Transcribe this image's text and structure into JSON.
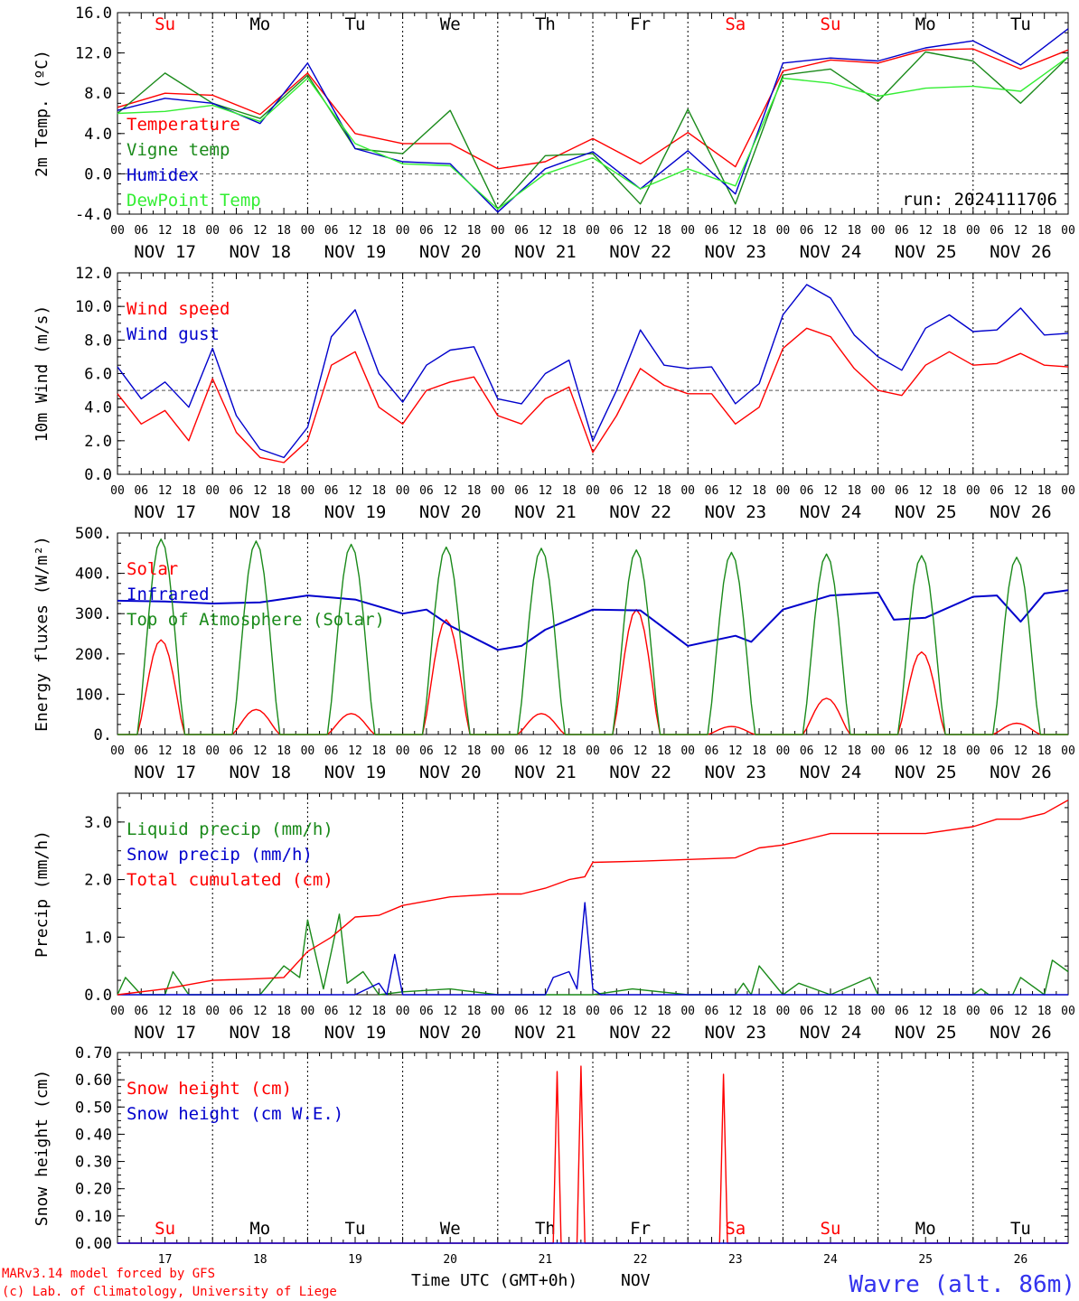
{
  "days": [
    "NOV 17",
    "NOV 18",
    "NOV 19",
    "NOV 20",
    "NOV 21",
    "NOV 22",
    "NOV 23",
    "NOV 24",
    "NOV 25",
    "NOV 26"
  ],
  "weekdays": [
    {
      "label": "Su",
      "color": "#ff0000"
    },
    {
      "label": "Mo",
      "color": "#000000"
    },
    {
      "label": "Tu",
      "color": "#000000"
    },
    {
      "label": "We",
      "color": "#000000"
    },
    {
      "label": "Th",
      "color": "#000000"
    },
    {
      "label": "Fr",
      "color": "#000000"
    },
    {
      "label": "Sa",
      "color": "#ff0000"
    },
    {
      "label": "Su",
      "color": "#ff0000"
    },
    {
      "label": "Mo",
      "color": "#000000"
    },
    {
      "label": "Tu",
      "color": "#000000"
    }
  ],
  "day_numbers": [
    "17",
    "18",
    "19",
    "20",
    "21",
    "22",
    "23",
    "24",
    "25",
    "26"
  ],
  "hour_ticks": [
    "00",
    "06",
    "12",
    "18"
  ],
  "footer": {
    "credit1": "MARv3.14 model forced by GFS",
    "credit2": "(c) Lab. of Climatology, University of Liege",
    "xlabel": "Time UTC (GMT+0h)",
    "month": "NOV",
    "station": "Wavre (alt. 86m)"
  },
  "chart_data": [
    {
      "type": "line",
      "ylabel": "2m Temp. (ºC)",
      "ylim": [
        -4,
        16
      ],
      "yticks": [
        "-4.0",
        "0.0",
        "4.0",
        "8.0",
        "12.0",
        "16.0"
      ],
      "ref_line": 0,
      "annotation": "run: 2024111706",
      "legend_placement": "left",
      "series": [
        {
          "name": "Temperature",
          "color": "#ff0000",
          "x": [
            0,
            12,
            24,
            36,
            48,
            60,
            72,
            84,
            96,
            108,
            120,
            132,
            144,
            156,
            168,
            180,
            192,
            204,
            216,
            228,
            240
          ],
          "values": [
            6.6,
            8.0,
            7.8,
            5.9,
            10.0,
            4.0,
            3.0,
            3.0,
            0.5,
            1.2,
            3.5,
            1.0,
            4.1,
            0.7,
            10.2,
            11.3,
            11.0,
            12.3,
            12.4,
            10.4,
            12.3
          ]
        },
        {
          "name": "Vigne temp",
          "color": "#1a8a1a",
          "x": [
            0,
            12,
            24,
            36,
            48,
            60,
            72,
            84,
            96,
            108,
            120,
            132,
            144,
            156,
            168,
            180,
            192,
            204,
            216,
            228,
            240
          ],
          "values": [
            6.0,
            10.0,
            7.0,
            5.5,
            9.8,
            2.5,
            2.0,
            6.3,
            -3.5,
            1.8,
            2.0,
            -3.0,
            6.4,
            -3.0,
            9.8,
            10.4,
            7.2,
            12.1,
            11.2,
            7.0,
            11.6
          ]
        },
        {
          "name": "Humidex",
          "color": "#0000cc",
          "x": [
            0,
            12,
            24,
            36,
            48,
            60,
            72,
            84,
            96,
            108,
            120,
            132,
            144,
            156,
            168,
            180,
            192,
            204,
            216,
            228,
            240
          ],
          "values": [
            6.3,
            7.5,
            7.0,
            5.0,
            11.0,
            2.5,
            1.2,
            1.0,
            -3.8,
            0.5,
            2.2,
            -1.5,
            2.3,
            -2.0,
            11.0,
            11.5,
            11.2,
            12.5,
            13.2,
            10.8,
            14.4
          ]
        },
        {
          "name": "DewPoint Temp",
          "color": "#33ee33",
          "x": [
            0,
            12,
            24,
            36,
            48,
            60,
            72,
            84,
            96,
            108,
            120,
            132,
            144,
            156,
            168,
            180,
            192,
            204,
            216,
            228,
            240
          ],
          "values": [
            6.0,
            6.2,
            6.8,
            5.2,
            9.5,
            3.0,
            1.0,
            0.8,
            -3.5,
            0.0,
            1.6,
            -1.5,
            0.5,
            -1.2,
            9.5,
            9.0,
            7.7,
            8.5,
            8.7,
            8.2,
            11.6
          ]
        }
      ]
    },
    {
      "type": "line",
      "ylabel": "10m Wind (m/s)",
      "ylim": [
        0,
        12
      ],
      "yticks": [
        "0.0",
        "2.0",
        "4.0",
        "6.0",
        "8.0",
        "10.0",
        "12.0"
      ],
      "ref_line": 5,
      "legend_placement": "left",
      "series": [
        {
          "name": "Wind speed",
          "color": "#ff0000",
          "x": [
            0,
            6,
            12,
            18,
            24,
            30,
            36,
            42,
            48,
            54,
            60,
            66,
            72,
            78,
            84,
            90,
            96,
            102,
            108,
            114,
            120,
            126,
            132,
            138,
            144,
            150,
            156,
            162,
            168,
            174,
            180,
            186,
            192,
            198,
            204,
            210,
            216,
            222,
            228,
            234,
            240
          ],
          "values": [
            4.8,
            3.0,
            3.8,
            2.0,
            5.7,
            2.5,
            1.0,
            0.7,
            2.0,
            6.5,
            7.3,
            4.0,
            3.0,
            5.0,
            5.5,
            5.8,
            3.5,
            3.0,
            4.5,
            5.2,
            1.3,
            3.5,
            6.3,
            5.3,
            4.8,
            4.8,
            3.0,
            4.0,
            7.5,
            8.7,
            8.2,
            6.3,
            5.0,
            4.7,
            6.5,
            7.3,
            6.5,
            6.6,
            7.2,
            6.5,
            6.4
          ]
        },
        {
          "name": "Wind gust",
          "color": "#0000cc",
          "x": [
            0,
            6,
            12,
            18,
            24,
            30,
            36,
            42,
            48,
            54,
            60,
            66,
            72,
            78,
            84,
            90,
            96,
            102,
            108,
            114,
            120,
            126,
            132,
            138,
            144,
            150,
            156,
            162,
            168,
            174,
            180,
            186,
            192,
            198,
            204,
            210,
            216,
            222,
            228,
            234,
            240
          ],
          "values": [
            6.4,
            4.5,
            5.5,
            4.0,
            7.5,
            3.5,
            1.5,
            1.0,
            2.8,
            8.2,
            9.8,
            6.0,
            4.3,
            6.5,
            7.4,
            7.6,
            4.5,
            4.2,
            6.0,
            6.8,
            2.0,
            5.0,
            8.6,
            6.5,
            6.3,
            6.4,
            4.2,
            5.4,
            9.5,
            11.3,
            10.5,
            8.3,
            7.0,
            6.2,
            8.7,
            9.5,
            8.5,
            8.6,
            9.9,
            8.3,
            8.4
          ]
        }
      ]
    },
    {
      "type": "line",
      "ylabel": "Energy fluxes (W/m²)",
      "ylim": [
        0,
        500
      ],
      "yticks": [
        "0.",
        "100.",
        "200.",
        "300.",
        "400.",
        "500."
      ],
      "legend_placement": "left",
      "toa_peaks": [
        485,
        480,
        472,
        465,
        462,
        458,
        452,
        448,
        444,
        440
      ],
      "solar_peaks": [
        235,
        62,
        52,
        285,
        52,
        310,
        20,
        90,
        205,
        28
      ],
      "series": [
        {
          "name": "Solar",
          "color": "#ff0000"
        },
        {
          "name": "Infrared",
          "color": "#0000cc",
          "x": [
            0,
            12,
            24,
            36,
            48,
            60,
            72,
            78,
            84,
            96,
            102,
            108,
            120,
            132,
            144,
            156,
            160,
            168,
            180,
            192,
            196,
            204,
            216,
            222,
            228,
            234,
            240
          ],
          "values": [
            332,
            330,
            325,
            328,
            345,
            335,
            300,
            310,
            270,
            210,
            220,
            260,
            310,
            308,
            220,
            245,
            230,
            310,
            345,
            352,
            285,
            290,
            342,
            345,
            280,
            350,
            358
          ]
        },
        {
          "name": "Top of Atmosphere (Solar)",
          "color": "#1a8a1a"
        }
      ]
    },
    {
      "type": "line",
      "ylabel": "Precip (mm/h)",
      "ylim": [
        0,
        3.5
      ],
      "yticks": [
        "0.0",
        "1.0",
        "2.0",
        "3.0"
      ],
      "legend_placement": "left",
      "series": [
        {
          "name": "Liquid precip (mm/h)",
          "color": "#1a8a1a",
          "x": [
            0,
            2,
            6,
            12,
            14,
            18,
            24,
            36,
            42,
            46,
            48,
            52,
            56,
            58,
            62,
            66,
            72,
            84,
            96,
            108,
            120,
            130,
            144,
            156,
            158,
            160,
            162,
            168,
            172,
            180,
            190,
            192,
            204,
            216,
            218,
            220,
            226,
            228,
            234,
            236,
            240
          ],
          "values": [
            0,
            0.3,
            0,
            0,
            0.4,
            0,
            0,
            0,
            0.5,
            0.3,
            1.3,
            0.1,
            1.4,
            0.2,
            0.4,
            0,
            0.05,
            0.1,
            0,
            0,
            0,
            0.1,
            0,
            0,
            0.2,
            0,
            0.5,
            0,
            0.2,
            0,
            0.3,
            0,
            0,
            0,
            0.1,
            0,
            0,
            0.3,
            0,
            0.6,
            0.4
          ]
        },
        {
          "name": "Snow precip (mm/h)",
          "color": "#0000cc",
          "x": [
            0,
            60,
            66,
            68,
            70,
            72,
            108,
            110,
            114,
            116,
            118,
            120,
            122,
            124,
            126,
            240
          ],
          "values": [
            0,
            0,
            0.2,
            0,
            0.7,
            0,
            0,
            0.3,
            0.4,
            0.1,
            1.6,
            0.1,
            0,
            0,
            0,
            0
          ]
        },
        {
          "name": "Total cumulated (cm)",
          "color": "#ff0000",
          "x": [
            0,
            12,
            24,
            36,
            42,
            48,
            54,
            60,
            66,
            72,
            84,
            96,
            102,
            108,
            114,
            118,
            120,
            132,
            144,
            156,
            162,
            168,
            174,
            180,
            192,
            204,
            216,
            222,
            228,
            234,
            240
          ],
          "values": [
            0,
            0.1,
            0.25,
            0.28,
            0.3,
            0.75,
            1.0,
            1.35,
            1.38,
            1.55,
            1.7,
            1.75,
            1.75,
            1.85,
            2.0,
            2.05,
            2.3,
            2.32,
            2.35,
            2.38,
            2.55,
            2.6,
            2.7,
            2.8,
            2.8,
            2.8,
            2.92,
            3.05,
            3.05,
            3.15,
            3.38
          ]
        }
      ]
    },
    {
      "type": "line",
      "ylabel": "Snow height (cm)",
      "ylim": [
        0,
        0.7
      ],
      "yticks": [
        "0.00",
        "0.10",
        "0.20",
        "0.30",
        "0.40",
        "0.50",
        "0.60",
        "0.70"
      ],
      "legend_placement": "left",
      "series": [
        {
          "name": "Snow height (cm)",
          "color": "#ff0000",
          "x": [
            0,
            110,
            111,
            112,
            116,
            117,
            118,
            152,
            153,
            154,
            240
          ],
          "values": [
            0,
            0,
            0.63,
            0,
            0,
            0.65,
            0,
            0,
            0.62,
            0,
            0
          ]
        },
        {
          "name": "Snow height (cm W.E.)",
          "color": "#0000cc",
          "x": [
            0,
            240
          ],
          "values": [
            0,
            0
          ]
        }
      ]
    }
  ]
}
